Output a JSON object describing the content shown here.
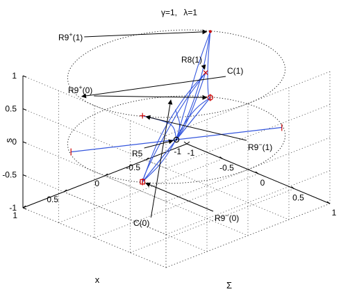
{
  "chart_data": {
    "type": "3d-line",
    "title_parts": {
      "gamma": "γ=1,",
      "lambda": "λ=1"
    },
    "xlabel": "x",
    "ylabel": "Σ",
    "zlabel": "s",
    "xlim": [
      -1,
      1
    ],
    "ylim": [
      -1,
      1
    ],
    "zlim": [
      -1,
      1
    ],
    "xticks": [
      "-1",
      "-0.5",
      "0",
      "0.5",
      "1"
    ],
    "yticks": [
      "-1",
      "-0.5",
      "0",
      "0.5",
      "1"
    ],
    "zticks": [
      "-1",
      "-0.5",
      "0",
      "0.5",
      "1"
    ],
    "grid": true,
    "line_color": "#3355dd",
    "marker_color": "#cc0000",
    "circles": [
      {
        "name": "C(0)",
        "z": 0,
        "radius": 1
      },
      {
        "name": "C(1)",
        "z": 1,
        "radius": 1
      }
    ],
    "critical_points": [
      {
        "name": "R9+(1)",
        "base": "R9",
        "sup": "+",
        "arg": "(1)",
        "x": -0.85,
        "y": -0.5,
        "z": 1,
        "marker": "dot"
      },
      {
        "name": "R8(1)",
        "base": "R8",
        "sup": "",
        "arg": "(1)",
        "x": -0.2,
        "y": 0.18,
        "z": 1,
        "marker": "x"
      },
      {
        "name": "R9+(0)",
        "base": "R9",
        "sup": "+",
        "arg": "(0)",
        "x": -0.85,
        "y": -0.5,
        "z": 0,
        "marker": "circle"
      },
      {
        "name": "R9-(1)",
        "base": "R9",
        "sup": "−",
        "arg": "(1)",
        "x": 0.85,
        "y": 0.5,
        "z": 1,
        "marker": "plus"
      },
      {
        "name": "R5",
        "base": "R5",
        "sup": "",
        "arg": "",
        "x": 0,
        "y": 0,
        "z": 0,
        "marker": "circle-dot"
      },
      {
        "name": "R9-(0)",
        "base": "R9",
        "sup": "−",
        "arg": "(0)",
        "x": 0.85,
        "y": 0.5,
        "z": 0,
        "marker": "square"
      }
    ],
    "annotations": [
      {
        "target": "R9+(1)",
        "base": "R9",
        "sup": "+",
        "arg": "(1)"
      },
      {
        "target": "R8(1)",
        "base": "R8",
        "sup": "",
        "arg": "(1)"
      },
      {
        "target": "C(1)",
        "base": "C(1)",
        "sup": "",
        "arg": ""
      },
      {
        "target": "R9+(0)",
        "base": "R9",
        "sup": "+",
        "arg": "(0)"
      },
      {
        "target": "R5",
        "base": "R5",
        "sup": "",
        "arg": ""
      },
      {
        "target": "R9-(1)",
        "base": "R9",
        "sup": "−",
        "arg": "(1)"
      },
      {
        "target": "C(0)",
        "base": "C(0)",
        "sup": "",
        "arg": ""
      },
      {
        "target": "R9-(0)",
        "base": "R9",
        "sup": "−",
        "arg": "(0)"
      }
    ],
    "segments": [
      {
        "name": "segment-upper",
        "from": [
          -0.85,
          -0.5,
          0
        ],
        "to": [
          0.85,
          0.5,
          0
        ]
      },
      {
        "name": "segment-lower",
        "from": [
          -0.85,
          0.5,
          0
        ],
        "to": [
          0.85,
          -0.5,
          0
        ]
      }
    ],
    "series": [
      {
        "points": [
          [
            -0.85,
            -0.5,
            1
          ],
          [
            -0.8,
            -0.47,
            0.7
          ],
          [
            -0.78,
            -0.46,
            0.35
          ],
          [
            -0.8,
            -0.47,
            0.05
          ],
          [
            -0.85,
            -0.5,
            0
          ]
        ]
      },
      {
        "points": [
          [
            -0.85,
            -0.5,
            1
          ],
          [
            -0.6,
            -0.35,
            0.8
          ],
          [
            -0.35,
            -0.2,
            0.5
          ],
          [
            -0.15,
            -0.08,
            0.25
          ],
          [
            0,
            0,
            0
          ]
        ]
      },
      {
        "points": [
          [
            -0.85,
            -0.5,
            1
          ],
          [
            -0.7,
            -0.42,
            0.55
          ],
          [
            -0.45,
            -0.27,
            0.25
          ],
          [
            -0.2,
            -0.12,
            0.08
          ],
          [
            0,
            0,
            0
          ]
        ]
      },
      {
        "points": [
          [
            -0.2,
            0.18,
            1
          ],
          [
            -0.15,
            0.14,
            0.7
          ],
          [
            -0.1,
            0.09,
            0.4
          ],
          [
            -0.05,
            0.04,
            0.15
          ],
          [
            0,
            0,
            0
          ]
        ]
      },
      {
        "points": [
          [
            -0.2,
            0.18,
            1
          ],
          [
            0.1,
            0.25,
            0.85
          ],
          [
            0.5,
            0.38,
            0.55
          ],
          [
            0.7,
            0.44,
            0.25
          ],
          [
            0.85,
            0.5,
            0
          ]
        ]
      },
      {
        "points": [
          [
            -0.2,
            0.18,
            1
          ],
          [
            0.2,
            0.3,
            0.75
          ],
          [
            0.6,
            0.42,
            0.35
          ],
          [
            0.8,
            0.48,
            0.1
          ],
          [
            0.85,
            0.5,
            0
          ]
        ]
      },
      {
        "points": [
          [
            0.85,
            0.5,
            1
          ],
          [
            0.4,
            0.25,
            0.6
          ],
          [
            0.1,
            0.08,
            0.3
          ],
          [
            0,
            0,
            0
          ]
        ]
      },
      {
        "points": [
          [
            -0.85,
            -0.5,
            0
          ],
          [
            -0.45,
            -0.25,
            0.15
          ],
          [
            -0.1,
            -0.05,
            0.1
          ],
          [
            0,
            0,
            0
          ]
        ]
      },
      {
        "points": [
          [
            0.1,
            0.1,
            0.55
          ],
          [
            0.15,
            0.25,
            0.35
          ],
          [
            0.5,
            0.4,
            0.1
          ],
          [
            0.85,
            0.5,
            0
          ]
        ]
      }
    ]
  }
}
